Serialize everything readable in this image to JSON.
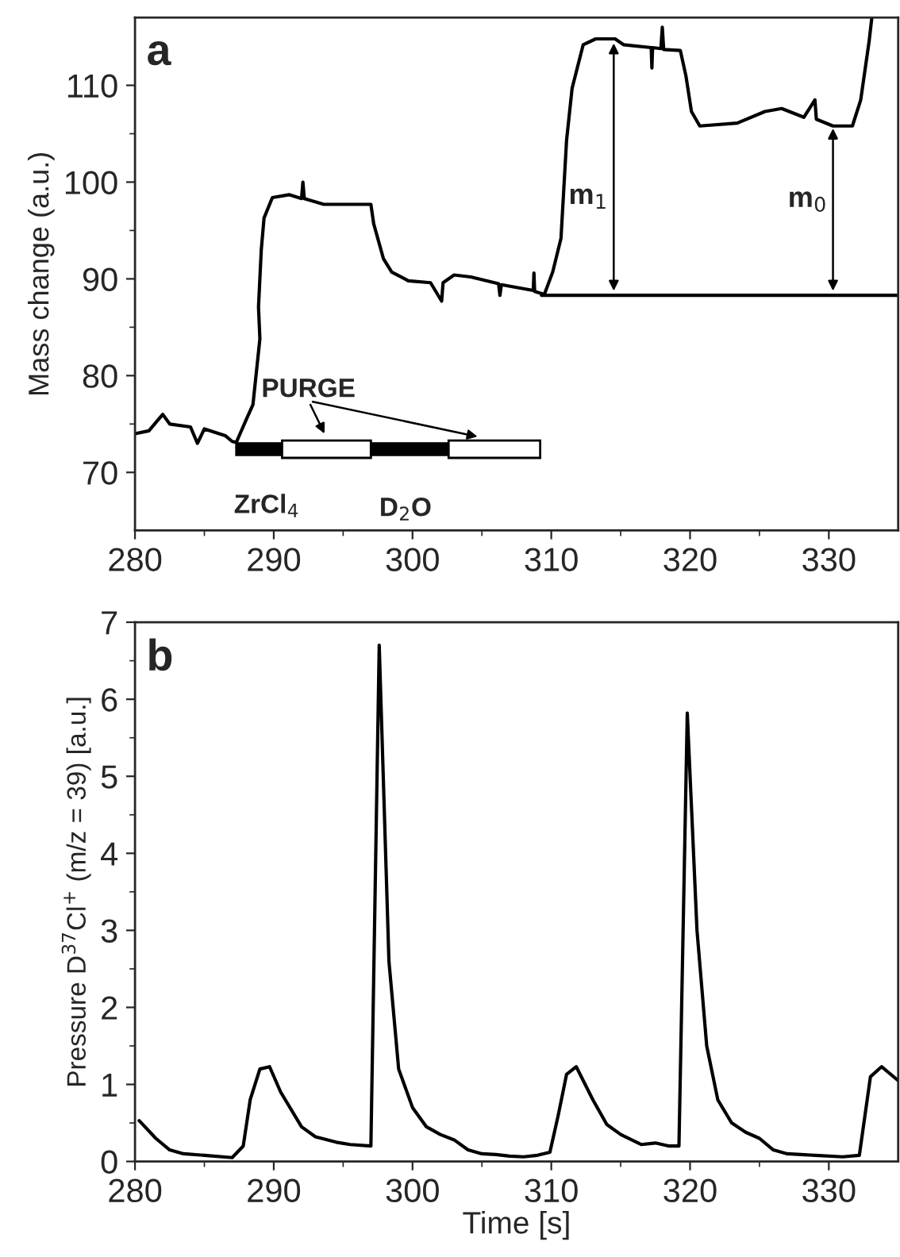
{
  "chart_data": [
    {
      "type": "line",
      "ylabel": "Mass change (a.u.)",
      "xlim": [
        280,
        335
      ],
      "ylim": [
        64,
        117
      ],
      "xticks": [
        280,
        290,
        300,
        310,
        320,
        330
      ],
      "yticks": [
        70,
        80,
        90,
        100,
        110
      ],
      "grid": false,
      "legend": false,
      "marker": "none",
      "line_style": "solid",
      "annotations": [
        "a",
        "PURGE",
        "ZrCl$_{4}$",
        "D$_{2}$O",
        "m$_{1}$",
        "m$_{0}$"
      ],
      "series": [
        {
          "color": "#000000",
          "x": [
            280,
            281,
            282,
            282.5,
            284,
            284.5,
            285,
            286.5,
            287,
            287.3,
            288,
            288.5,
            289,
            288.9,
            289.1,
            289.3,
            289.9,
            291.1,
            292,
            292.1,
            292.2,
            293.6,
            297,
            297.2,
            297.9,
            298.5,
            299.7,
            301.3,
            302.1,
            302.2,
            303,
            304.2,
            306.2,
            306.3,
            306.4,
            308.7,
            308.75,
            308.8,
            309.5,
            310.1,
            310.7,
            311.1,
            311.5,
            312.3,
            313.2,
            314.6,
            315.2,
            317.2,
            317.25,
            317.3,
            317.9,
            318,
            318.1,
            319.3,
            319.7,
            320.1,
            320.7,
            323.4,
            325.4,
            326.6,
            328.2,
            329,
            329.1,
            330.3,
            331.7,
            332.3,
            332.9,
            333.1
          ],
          "values": [
            74,
            74.3,
            76,
            75,
            74.7,
            73,
            74.5,
            73.8,
            73.2,
            73.1,
            75.4,
            77,
            83.8,
            87.1,
            93,
            96.3,
            98.4,
            98.7,
            98.3,
            100,
            98.3,
            97.7,
            97.7,
            95.7,
            92.1,
            90.7,
            89.8,
            89.6,
            87.7,
            89.6,
            90.4,
            90.2,
            89.5,
            88.3,
            89.4,
            88.8,
            90.6,
            88.7,
            88.4,
            90.7,
            94.2,
            104.3,
            109.7,
            114.2,
            114.8,
            114.8,
            114.2,
            113.9,
            111.8,
            113.9,
            113.8,
            116,
            113.7,
            113.6,
            111,
            107.3,
            105.8,
            106.1,
            107.3,
            107.6,
            106.7,
            108.5,
            106.5,
            105.8,
            105.8,
            108.5,
            114.5,
            117
          ]
        },
        {
          "color": "#000000",
          "x": [
            309.3,
            335
          ],
          "values": [
            88.3,
            88.3
          ]
        }
      ]
    },
    {
      "type": "line",
      "xlabel": "Time [s]",
      "ylabel": "Pressure D$^{37}$Cl$^{+}$ (m/z = 39) [a.u.]",
      "xlim": [
        280,
        335
      ],
      "ylim": [
        0,
        7
      ],
      "xticks": [
        280,
        290,
        300,
        310,
        320,
        330
      ],
      "yticks": [
        0,
        1,
        2,
        3,
        4,
        5,
        6,
        7
      ],
      "grid": false,
      "legend": false,
      "marker": "none",
      "line_style": "solid",
      "annotations": [
        "b"
      ],
      "series": [
        {
          "color": "#000000",
          "x": [
            280.3,
            281.5,
            282.5,
            283.5,
            285,
            287,
            287.8,
            288.3,
            289,
            289.7,
            290.5,
            292,
            293,
            294.5,
            295.5,
            297,
            297.6,
            298.3,
            299,
            300,
            301,
            302,
            303,
            304,
            305,
            306,
            307,
            308,
            309,
            309.9,
            310.5,
            311.1,
            311.8,
            313,
            314,
            315,
            316.5,
            317.5,
            318.5,
            319.2,
            319.8,
            320.5,
            321.2,
            322,
            323,
            324,
            325,
            326,
            327,
            329,
            331,
            332.2,
            333,
            333.8,
            335
          ],
          "values": [
            0.53,
            0.3,
            0.15,
            0.1,
            0.08,
            0.05,
            0.2,
            0.8,
            1.2,
            1.23,
            0.9,
            0.45,
            0.32,
            0.25,
            0.22,
            0.2,
            6.7,
            2.6,
            1.2,
            0.7,
            0.45,
            0.35,
            0.28,
            0.15,
            0.1,
            0.09,
            0.07,
            0.06,
            0.08,
            0.12,
            0.6,
            1.13,
            1.23,
            0.8,
            0.48,
            0.35,
            0.22,
            0.24,
            0.2,
            0.2,
            5.82,
            3.0,
            1.5,
            0.8,
            0.5,
            0.38,
            0.3,
            0.15,
            0.1,
            0.08,
            0.06,
            0.08,
            1.1,
            1.23,
            1.05
          ]
        }
      ]
    }
  ]
}
